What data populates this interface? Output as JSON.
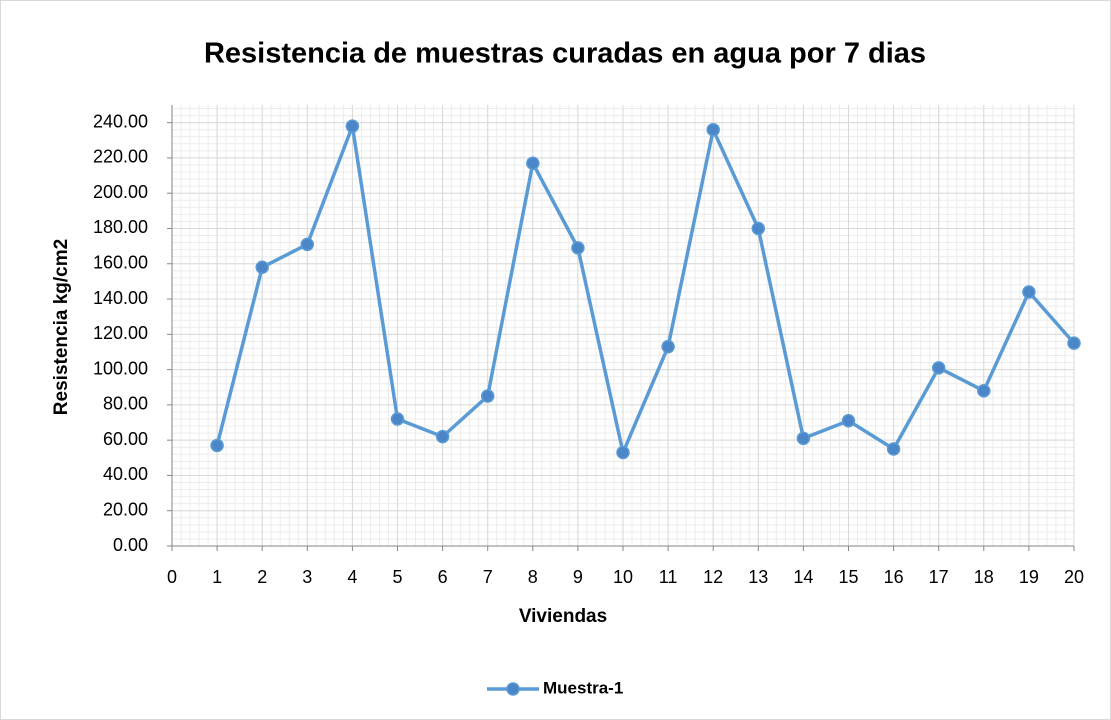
{
  "chart_data": {
    "type": "line",
    "title": "Resistencia de muestras curadas en agua por 7 dias",
    "x_label": "Viviendas",
    "y_label": "Resistencia kg/cm2",
    "x": [
      1,
      2,
      3,
      4,
      5,
      6,
      7,
      8,
      9,
      10,
      11,
      12,
      13,
      14,
      15,
      16,
      17,
      18,
      19,
      20
    ],
    "series": [
      {
        "name": "Muestra-1",
        "color": "#5b9bd5",
        "values": [
          57,
          158,
          171,
          238,
          72,
          62,
          85,
          217,
          169,
          53,
          113,
          236,
          180,
          61,
          71,
          55,
          101,
          88,
          144,
          115
        ]
      }
    ],
    "xlim": [
      0,
      20
    ],
    "xticks": [
      0,
      1,
      2,
      3,
      4,
      5,
      6,
      7,
      8,
      9,
      10,
      11,
      12,
      13,
      14,
      15,
      16,
      17,
      18,
      19,
      20
    ],
    "ylim": [
      0,
      250
    ],
    "yticks": [
      {
        "value": 0,
        "label": "0.00"
      },
      {
        "value": 20,
        "label": "20.00"
      },
      {
        "value": 40,
        "label": "40.00"
      },
      {
        "value": 60,
        "label": "60.00"
      },
      {
        "value": 80,
        "label": "80.00"
      },
      {
        "value": 100,
        "label": "100.00"
      },
      {
        "value": 120,
        "label": "120.00"
      },
      {
        "value": 140,
        "label": "140.00"
      },
      {
        "value": 160,
        "label": "160.00"
      },
      {
        "value": 180,
        "label": "180.00"
      },
      {
        "value": 200,
        "label": "200.00"
      },
      {
        "value": 220,
        "label": "220.00"
      },
      {
        "value": 240,
        "label": "240.00"
      }
    ],
    "grid": true,
    "legend": "bottom"
  }
}
